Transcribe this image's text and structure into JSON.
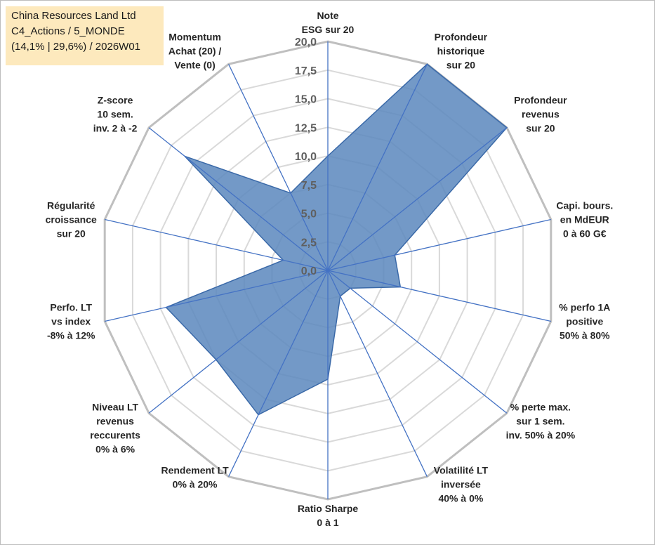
{
  "title_box": {
    "line1": "China Resources Land Ltd",
    "line2": "C4_Actions / 5_MONDE",
    "line3": "(14,1% | 29,6%) / 2026W01"
  },
  "colors": {
    "fill": "#5b87bd",
    "stroke": "#3a69a8",
    "axis": "#4472c4",
    "grid_outer": "#bfbfbf",
    "grid_inner": "#d9d9d9",
    "title_bg": "#fde9bd"
  },
  "chart_data": {
    "type": "radar",
    "title": "",
    "scale": {
      "min": 0,
      "max": 20,
      "step": 2.5
    },
    "tick_labels": [
      "0,0",
      "2,5",
      "5,0",
      "7,5",
      "10,0",
      "12,5",
      "15,0",
      "17,5",
      "20,0"
    ],
    "axes": [
      {
        "lines": [
          "Note",
          "ESG sur 20"
        ],
        "value": 10.0
      },
      {
        "lines": [
          "Profondeur",
          "historique",
          "sur 20"
        ],
        "value": 20.0
      },
      {
        "lines": [
          "Profondeur",
          "revenus",
          "sur 20"
        ],
        "value": 20.0
      },
      {
        "lines": [
          "Capi. bours.",
          "en MdEUR",
          "0 à 60 G€"
        ],
        "value": 6.0
      },
      {
        "lines": [
          "% perfo 1A",
          "positive",
          "50% à 80%"
        ],
        "value": 6.5
      },
      {
        "lines": [
          "% perte max.",
          "sur 1 sem.",
          "inv. 50% à 20%"
        ],
        "value": 2.5
      },
      {
        "lines": [
          "Volatilité LT",
          "inversée",
          "40% à 0%"
        ],
        "value": 2.5
      },
      {
        "lines": [
          "Ratio Sharpe",
          "0 à 1"
        ],
        "value": 9.5
      },
      {
        "lines": [
          "Rendement LT",
          "0% à 20%"
        ],
        "value": 14.0
      },
      {
        "lines": [
          "Niveau LT",
          "revenus",
          "reccurents",
          "0% à 6%"
        ],
        "value": 12.5
      },
      {
        "lines": [
          "Perfo. LT",
          "vs index",
          "-8% à 12%"
        ],
        "value": 14.5
      },
      {
        "lines": [
          "Régularité",
          "croissance",
          "sur 20"
        ],
        "value": 4.0
      },
      {
        "lines": [
          "Z-score",
          "10 sem.",
          "inv. 2 à -2"
        ],
        "value": 16.0
      },
      {
        "lines": [
          "Momentum",
          "Achat (20) /",
          "Vente (0)"
        ],
        "value": 7.5
      }
    ]
  }
}
